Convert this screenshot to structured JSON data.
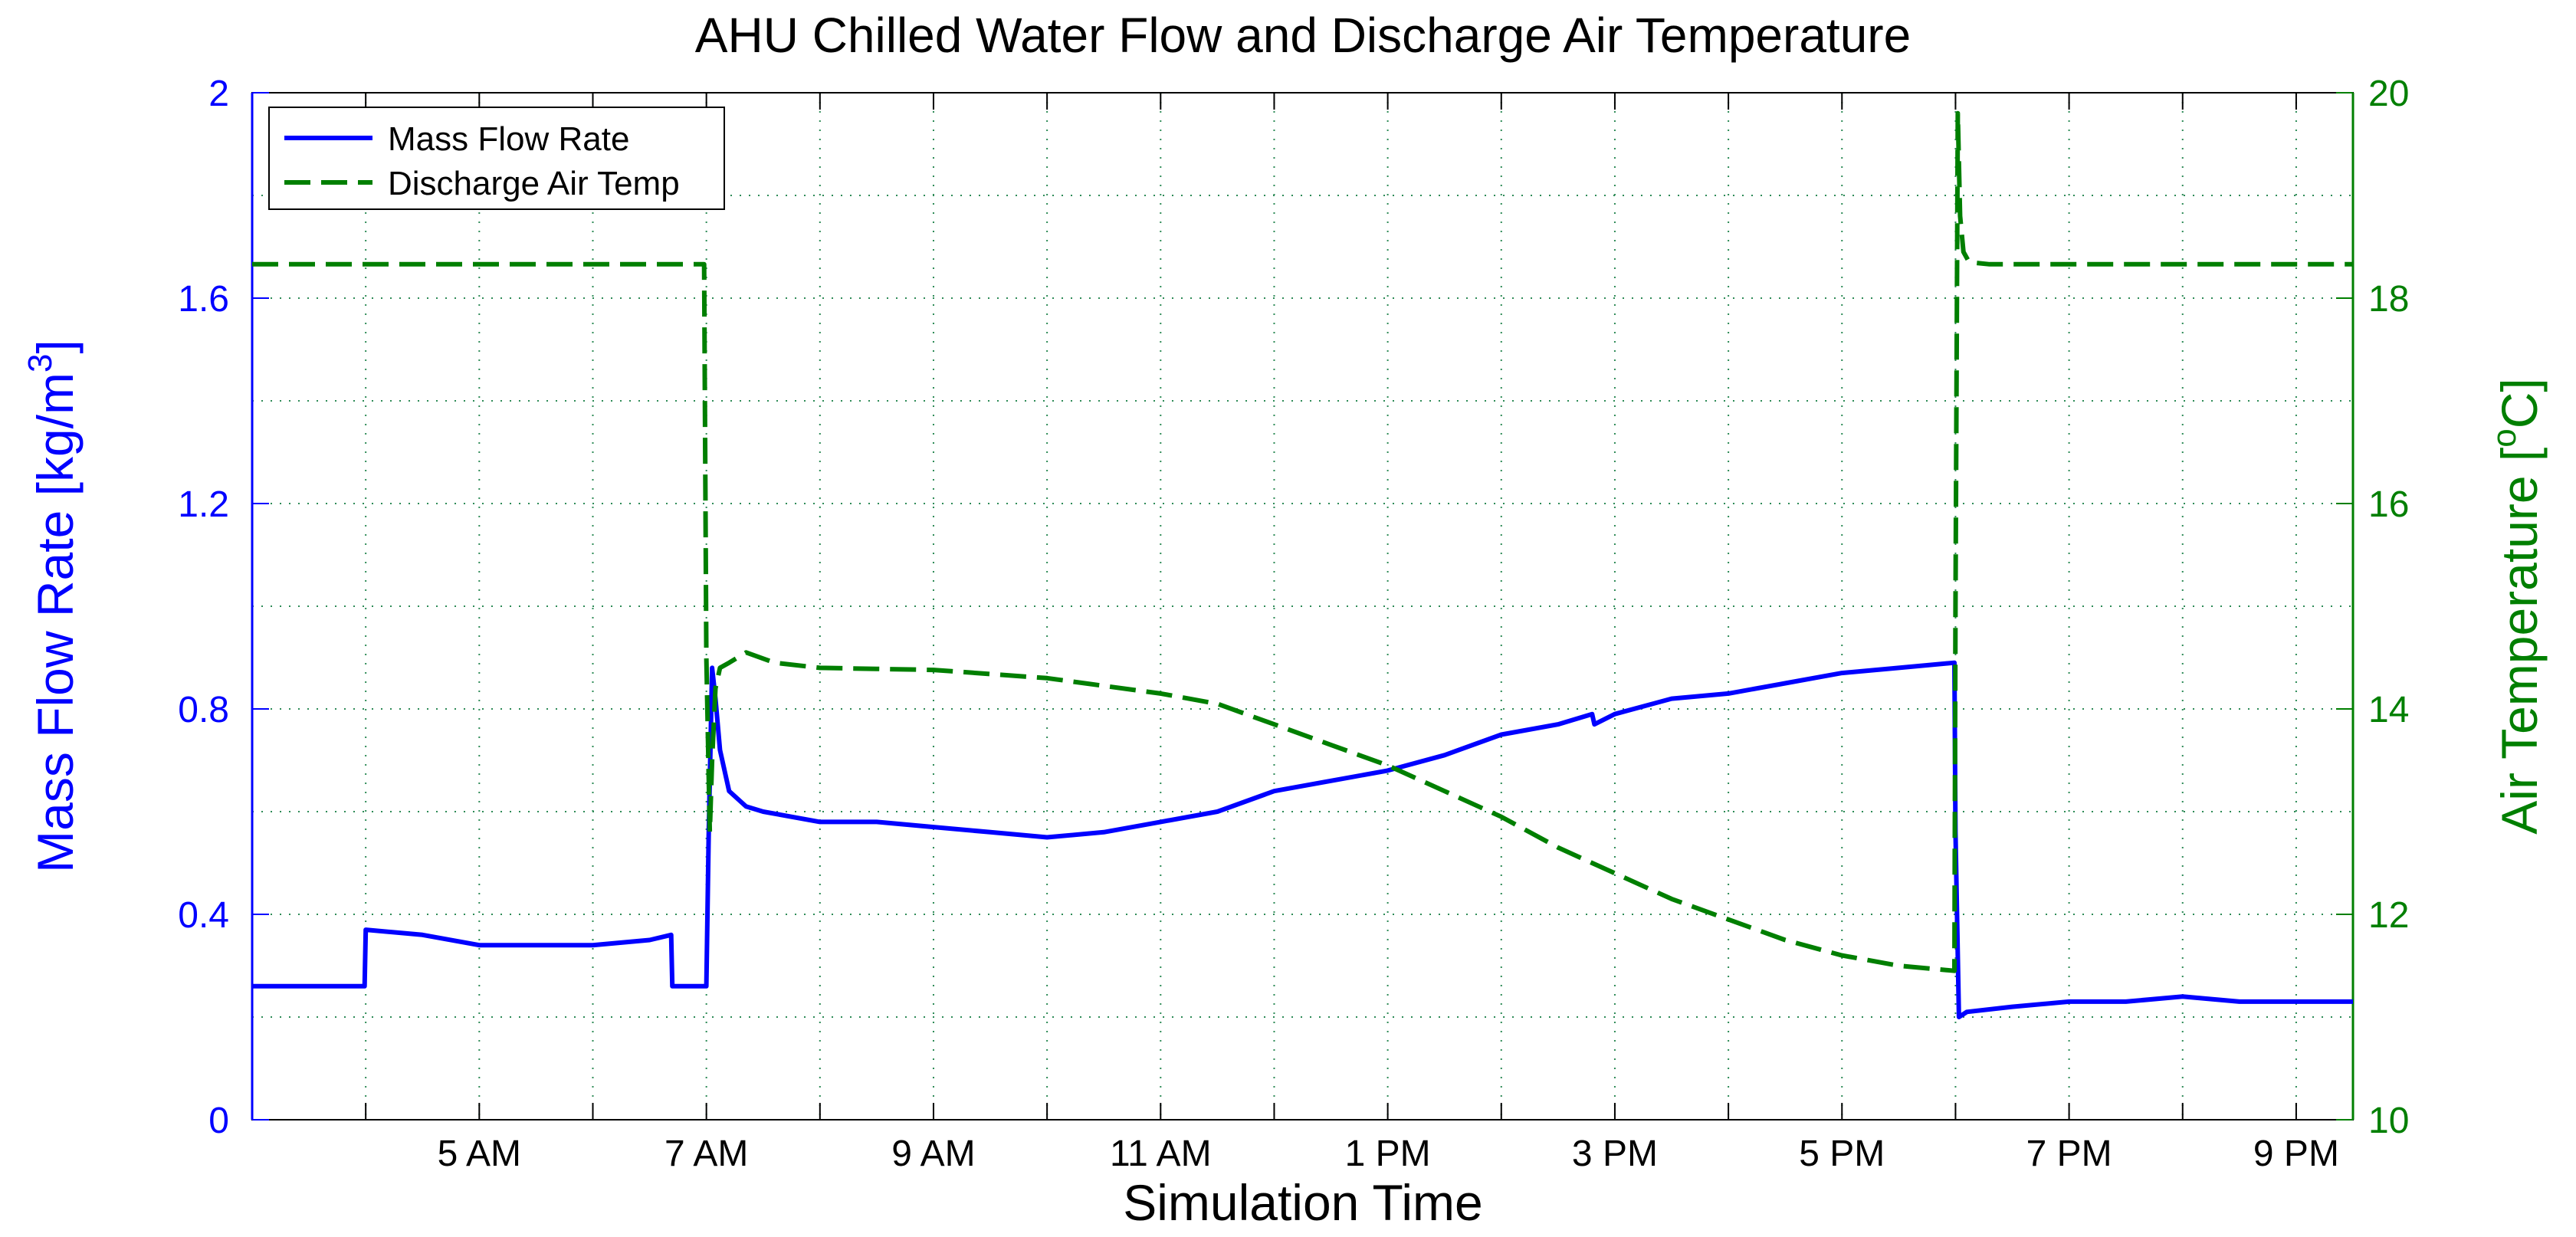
{
  "chart_data": {
    "type": "line",
    "title": "AHU Chilled Water Flow and Discharge Air Temperature",
    "xlabel": "Simulation Time",
    "ylabel_left": "Mass Flow Rate [kg/m",
    "ylabel_left_sup": "3",
    "ylabel_left_tail": "]",
    "ylabel_right_pre": "Air Temperature [",
    "ylabel_right_sup": "o",
    "ylabel_right_tail": "C]",
    "xlim": [
      3.0,
      21.5
    ],
    "x_ticks": [
      4,
      5,
      6,
      7,
      8,
      9,
      10,
      11,
      12,
      13,
      14,
      15,
      16,
      17,
      18,
      19,
      20,
      21
    ],
    "x_tick_labels": [
      {
        "x": 5,
        "label": "5 AM"
      },
      {
        "x": 7,
        "label": "7 AM"
      },
      {
        "x": 9,
        "label": "9 AM"
      },
      {
        "x": 11,
        "label": "11 AM"
      },
      {
        "x": 13,
        "label": "1 PM"
      },
      {
        "x": 15,
        "label": "3 PM"
      },
      {
        "x": 17,
        "label": "5 PM"
      },
      {
        "x": 19,
        "label": "7 PM"
      },
      {
        "x": 21,
        "label": "9 PM"
      }
    ],
    "ylim_left": [
      0,
      2
    ],
    "yticks_left": [
      0,
      0.4,
      0.8,
      1.2,
      1.6,
      2
    ],
    "ytick_labels_left": [
      "0",
      "0.4",
      "0.8",
      "1.2",
      "1.6",
      "2"
    ],
    "ylim_right": [
      10,
      20
    ],
    "yticks_right": [
      10,
      12,
      14,
      16,
      18,
      20
    ],
    "ytick_labels_right": [
      "10",
      "12",
      "14",
      "16",
      "18",
      "20"
    ],
    "grid": true,
    "legend_position": "top-left",
    "colors": {
      "flow": "#0000ff",
      "temp": "#007f00",
      "grid": "#2e8b57"
    },
    "series": [
      {
        "name": "Mass Flow Rate",
        "axis": "left",
        "style": "solid",
        "x": [
          3.0,
          3.5,
          3.99,
          4.0,
          4.5,
          5.0,
          5.5,
          6.0,
          6.5,
          6.69,
          6.7,
          7.0,
          7.02,
          7.05,
          7.08,
          7.12,
          7.2,
          7.35,
          7.5,
          8.0,
          8.5,
          9.0,
          9.5,
          10.0,
          10.5,
          11.0,
          11.5,
          12.0,
          12.5,
          13.0,
          13.5,
          14.0,
          14.5,
          14.8,
          14.82,
          15.0,
          15.5,
          16.0,
          16.5,
          17.0,
          17.5,
          17.99,
          18.0,
          18.03,
          18.1,
          18.5,
          19.0,
          19.5,
          20.0,
          20.5,
          21.0,
          21.5
        ],
        "values": [
          0.26,
          0.26,
          0.26,
          0.37,
          0.36,
          0.34,
          0.34,
          0.34,
          0.35,
          0.36,
          0.26,
          0.26,
          0.55,
          0.88,
          0.82,
          0.72,
          0.64,
          0.61,
          0.6,
          0.58,
          0.58,
          0.57,
          0.56,
          0.55,
          0.56,
          0.58,
          0.6,
          0.64,
          0.66,
          0.68,
          0.71,
          0.75,
          0.77,
          0.79,
          0.77,
          0.79,
          0.82,
          0.83,
          0.85,
          0.87,
          0.88,
          0.89,
          0.56,
          0.2,
          0.21,
          0.22,
          0.23,
          0.23,
          0.24,
          0.23,
          0.23,
          0.23
        ]
      },
      {
        "name": "Discharge Air Temp",
        "axis": "right",
        "style": "dashed",
        "x": [
          3.0,
          4.0,
          5.0,
          6.0,
          6.98,
          7.0,
          7.03,
          7.05,
          7.08,
          7.12,
          7.2,
          7.35,
          7.6,
          8.0,
          9.0,
          10.0,
          11.0,
          11.5,
          12.0,
          12.5,
          13.0,
          13.5,
          14.0,
          14.5,
          15.0,
          15.5,
          16.0,
          16.5,
          17.0,
          17.5,
          17.99,
          18.0,
          18.02,
          18.04,
          18.07,
          18.12,
          18.3,
          19.0,
          20.0,
          21.0,
          21.5
        ],
        "values": [
          18.33,
          18.33,
          18.33,
          18.33,
          18.33,
          14.5,
          12.8,
          13.5,
          14.2,
          14.4,
          14.45,
          14.55,
          14.45,
          14.4,
          14.38,
          14.3,
          14.15,
          14.05,
          13.85,
          13.65,
          13.45,
          13.2,
          12.95,
          12.65,
          12.4,
          12.15,
          11.95,
          11.75,
          11.6,
          11.5,
          11.45,
          15.0,
          19.8,
          18.8,
          18.45,
          18.35,
          18.33,
          18.33,
          18.33,
          18.33,
          18.33
        ]
      }
    ]
  }
}
